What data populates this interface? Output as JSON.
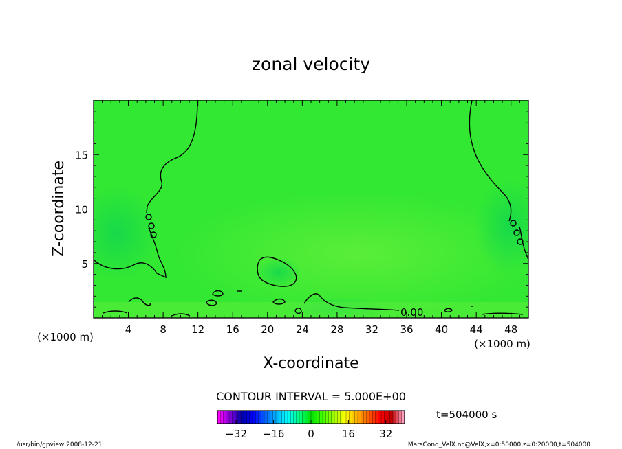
{
  "chart_data": {
    "type": "heatmap",
    "title": "zonal velocity",
    "xlabel": "X-coordinate",
    "ylabel": "Z-coordinate",
    "x_unit_label": "(×1000 m)",
    "y_unit_label": "(×1000 m)",
    "xlim": [
      0,
      50
    ],
    "ylim": [
      0,
      20
    ],
    "x_ticks": [
      4,
      8,
      12,
      16,
      20,
      24,
      28,
      32,
      36,
      40,
      44,
      48
    ],
    "y_ticks": [
      5,
      10,
      15
    ],
    "contour_interval_text": "CONTOUR INTERVAL = 5.000E+00",
    "contour_label": "0.00",
    "time_label": "t=504000 s",
    "colorbar": {
      "ticks": [
        -32,
        -16,
        0,
        16,
        32
      ],
      "range": [
        -40,
        40
      ],
      "colors": [
        "#ff00ff",
        "#7d00d8",
        "#0000a8",
        "#0000ff",
        "#0060ff",
        "#00b4ff",
        "#00ffff",
        "#00ff80",
        "#00e000",
        "#40ff00",
        "#a0ff00",
        "#ffff00",
        "#ffb000",
        "#ff6000",
        "#ff0000",
        "#c00000",
        "#ffa0c0"
      ]
    },
    "field_colors": {
      "background": "#33e833",
      "light": "#55ec38",
      "slow": "#22dd4a"
    },
    "footer_left": "/usr/bin/gpview   2008-12-21",
    "footer_right": "MarsCond_VelX.nc@VelX,x=0:50000,z=0:20000,t=504000"
  }
}
